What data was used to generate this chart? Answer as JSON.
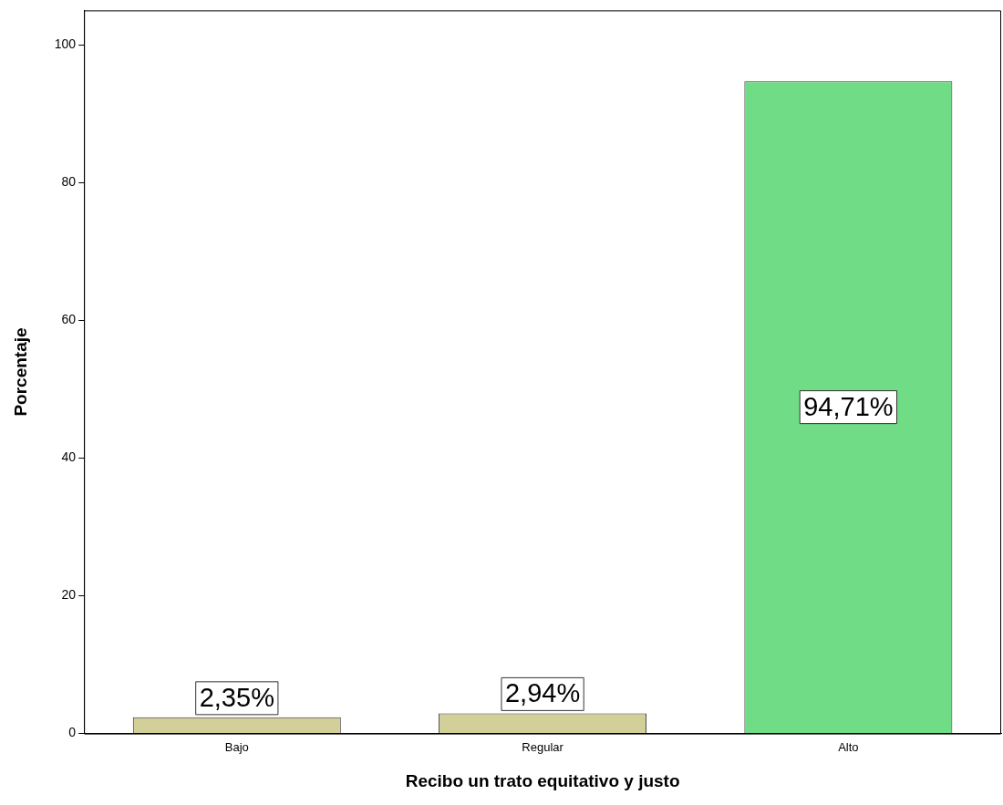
{
  "chart_data": {
    "type": "bar",
    "xlabel": "Recibo un trato equitativo y justo",
    "ylabel": "Porcentaje",
    "categories": [
      "Bajo",
      "Regular",
      "Alto"
    ],
    "values": [
      2.35,
      2.94,
      94.71
    ],
    "colors": [
      "#d3cf98",
      "#d3cf98",
      "#70dd86"
    ],
    "value_labels": [
      "2,35%",
      "2,94%",
      "94,71%"
    ],
    "ylim": [
      0,
      105
    ],
    "yticks": [
      0,
      20,
      40,
      60,
      80,
      100
    ]
  }
}
